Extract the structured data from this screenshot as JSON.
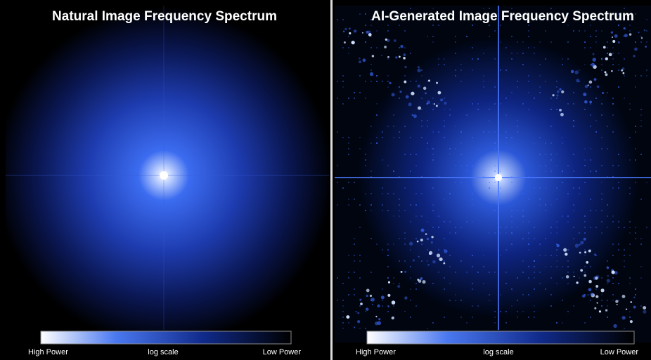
{
  "panels": [
    {
      "title": "Natural Image Frequency Spectrum",
      "colorbar": {
        "high": "High Power",
        "scale": "log scale",
        "low": "Low Power"
      }
    },
    {
      "title": "AI-Generated Image Frequency Spectrum",
      "colorbar": {
        "high": "High Power",
        "scale": "log scale",
        "low": "Low Power"
      }
    }
  ]
}
